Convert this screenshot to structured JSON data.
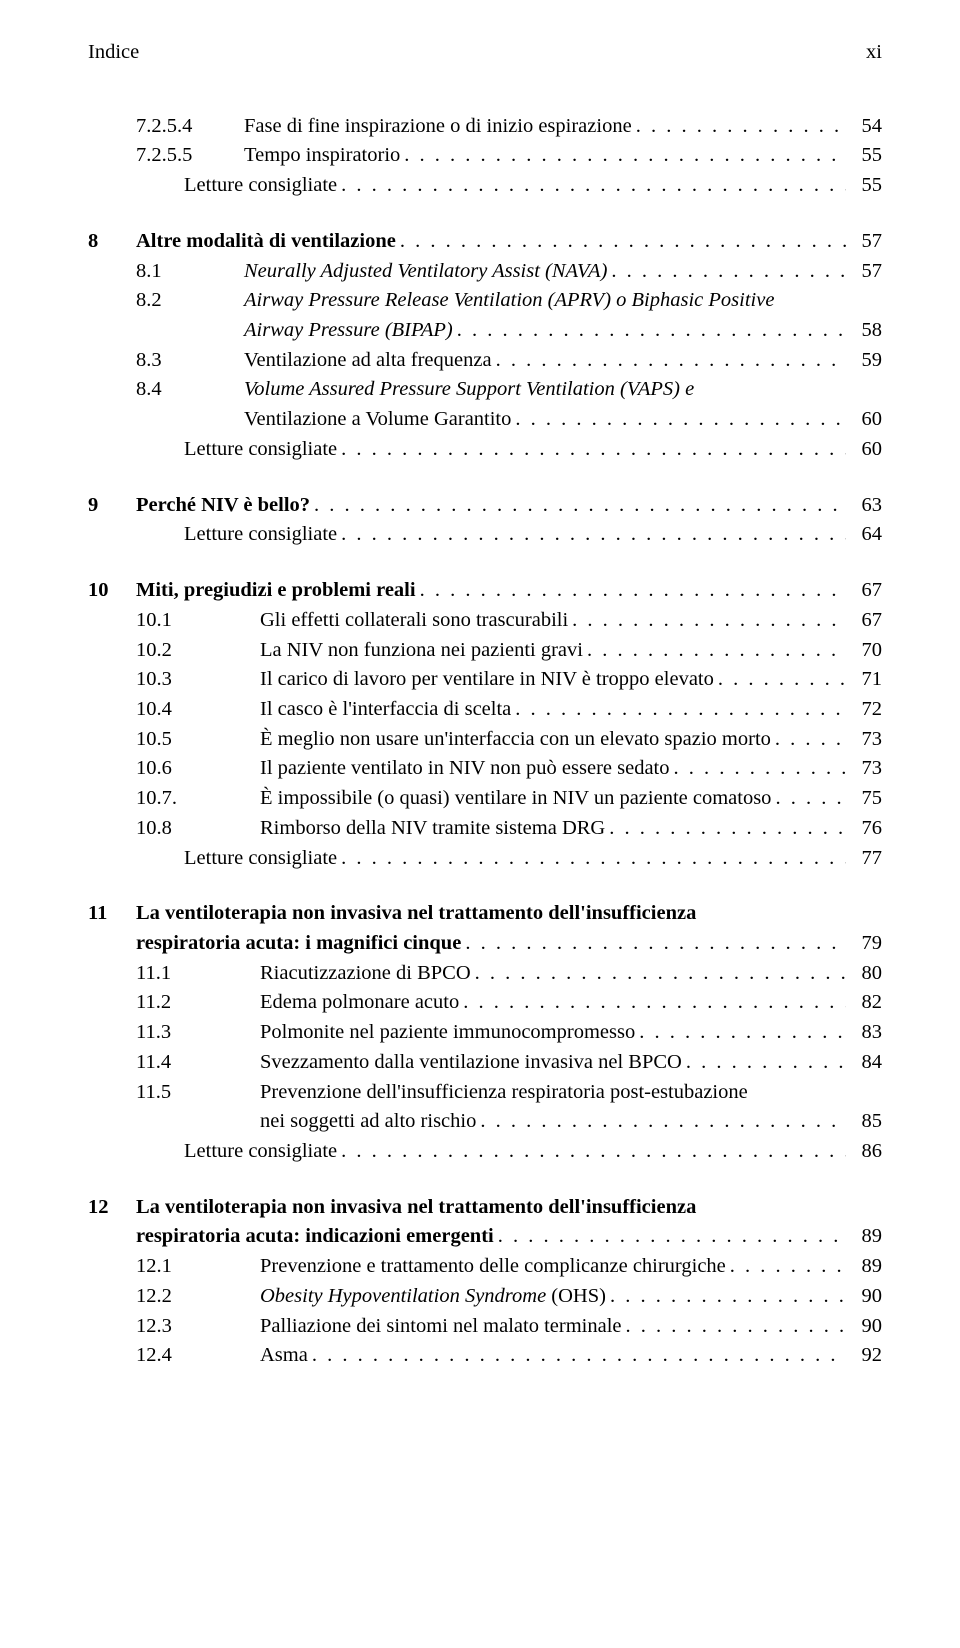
{
  "header": {
    "left": "Indice",
    "right": "xi"
  },
  "entries": [
    {
      "cls": "indent-1",
      "num": "7.2.5.4",
      "label": "Fase di fine inspirazione o di inizio espirazione",
      "pg": "54"
    },
    {
      "cls": "indent-1",
      "num": "7.2.5.5",
      "label": "Tempo inspiratorio",
      "pg": "55"
    },
    {
      "cls": "indent-letture",
      "num": "",
      "label": "Letture consigliate",
      "pg": "55"
    },
    {
      "gap": "m"
    },
    {
      "cls": "indent-0",
      "num": "8",
      "bold": true,
      "label": "Altre modalità di ventilazione",
      "pg": "57"
    },
    {
      "cls": "indent-1",
      "num": "8.1",
      "italic": true,
      "label": "Neurally Adjusted Ventilatory Assist (NAVA)",
      "pg": "57"
    },
    {
      "cls": "indent-1",
      "num": "8.2",
      "italic": true,
      "wrap": true,
      "label_lines": [
        "Airway Pressure Release Ventilation (APRV) o Biphasic Positive",
        "Airway Pressure (BIPAP)"
      ],
      "pg": "58"
    },
    {
      "cls": "indent-1",
      "num": "8.3",
      "label": "Ventilazione ad alta frequenza",
      "pg": "59"
    },
    {
      "cls": "indent-1",
      "num": "8.4",
      "italic": true,
      "wrap": true,
      "label_lines": [
        "Volume Assured Pressure Support Ventilation (VAPS) e",
        "Ventilazione a Volume Garantito"
      ],
      "italic_line2": false,
      "pg": "60"
    },
    {
      "cls": "indent-letture",
      "num": "",
      "label": "Letture consigliate",
      "pg": "60"
    },
    {
      "gap": "m"
    },
    {
      "cls": "indent-0",
      "num": "9",
      "bold": true,
      "label": "Perché NIV è bello?",
      "pg": "63"
    },
    {
      "cls": "indent-letture",
      "num": "",
      "label": "Letture consigliate",
      "pg": "64"
    },
    {
      "gap": "m"
    },
    {
      "cls": "indent-0",
      "num": "10",
      "bold": true,
      "label": "Miti, pregiudizi e problemi reali",
      "pg": "67"
    },
    {
      "cls": "indent-1-wide",
      "num": "10.1",
      "label": "Gli effetti collaterali sono trascurabili",
      "pg": "67"
    },
    {
      "cls": "indent-1-wide",
      "num": "10.2",
      "label": "La NIV non funziona nei pazienti gravi",
      "pg": "70"
    },
    {
      "cls": "indent-1-wide",
      "num": "10.3",
      "label": "Il carico di lavoro per ventilare in NIV è troppo elevato",
      "pg": "71"
    },
    {
      "cls": "indent-1-wide",
      "num": "10.4",
      "label": "Il casco è l'interfaccia di scelta",
      "pg": "72"
    },
    {
      "cls": "indent-1-wide",
      "num": "10.5",
      "label": "È meglio non usare un'interfaccia con un elevato spazio morto",
      "pg": "73"
    },
    {
      "cls": "indent-1-wide",
      "num": "10.6",
      "label": "Il paziente ventilato in NIV non può essere sedato",
      "pg": "73"
    },
    {
      "cls": "indent-1-wide",
      "num": "10.7.",
      "label": "È impossibile (o quasi) ventilare in NIV un paziente comatoso",
      "pg": "75"
    },
    {
      "cls": "indent-1-wide",
      "num": "10.8",
      "label": "Rimborso della NIV tramite sistema DRG",
      "pg": "76"
    },
    {
      "cls": "indent-letture",
      "num": "",
      "label": "Letture consigliate",
      "pg": "77"
    },
    {
      "gap": "m"
    },
    {
      "cls": "indent-0",
      "num": "11",
      "bold": true,
      "wrap": true,
      "label_lines": [
        "La ventiloterapia non invasiva nel trattamento dell'insufficienza",
        "respiratoria acuta: i magnifici cinque"
      ],
      "cont_indent": "48px",
      "pg": "79"
    },
    {
      "cls": "indent-1-wide",
      "num": "11.1",
      "label": "Riacutizzazione di BPCO",
      "pg": "80"
    },
    {
      "cls": "indent-1-wide",
      "num": "11.2",
      "label": "Edema polmonare acuto",
      "pg": "82"
    },
    {
      "cls": "indent-1-wide",
      "num": "11.3",
      "label": "Polmonite nel paziente immunocompromesso",
      "pg": "83"
    },
    {
      "cls": "indent-1-wide",
      "num": "11.4",
      "label": "Svezzamento dalla ventilazione invasiva nel BPCO",
      "pg": "84"
    },
    {
      "cls": "indent-1-wide",
      "num": "11.5",
      "wrap": true,
      "label_lines": [
        "Prevenzione dell'insufficienza respiratoria post-estubazione",
        "nei soggetti ad alto rischio"
      ],
      "pg": "85"
    },
    {
      "cls": "indent-letture",
      "num": "",
      "label": "Letture consigliate",
      "pg": "86"
    },
    {
      "gap": "m"
    },
    {
      "cls": "indent-0",
      "num": "12",
      "bold": true,
      "wrap": true,
      "label_lines": [
        "La ventiloterapia non invasiva nel trattamento dell'insufficienza",
        "respiratoria acuta: indicazioni emergenti"
      ],
      "cont_indent": "48px",
      "pg": "89"
    },
    {
      "cls": "indent-1-wide",
      "num": "12.1",
      "label": "Prevenzione e trattamento delle complicanze chirurgiche",
      "pg": "89"
    },
    {
      "cls": "indent-1-wide",
      "num": "12.2",
      "italic": true,
      "mixed": true,
      "label_italic": "Obesity Hypoventilation Syndrome",
      "label_plain": " (OHS)",
      "pg": "90"
    },
    {
      "cls": "indent-1-wide",
      "num": "12.3",
      "label": "Palliazione dei sintomi nel malato terminale",
      "pg": "90"
    },
    {
      "cls": "indent-1-wide",
      "num": "12.4",
      "label": "Asma",
      "pg": "92"
    }
  ]
}
